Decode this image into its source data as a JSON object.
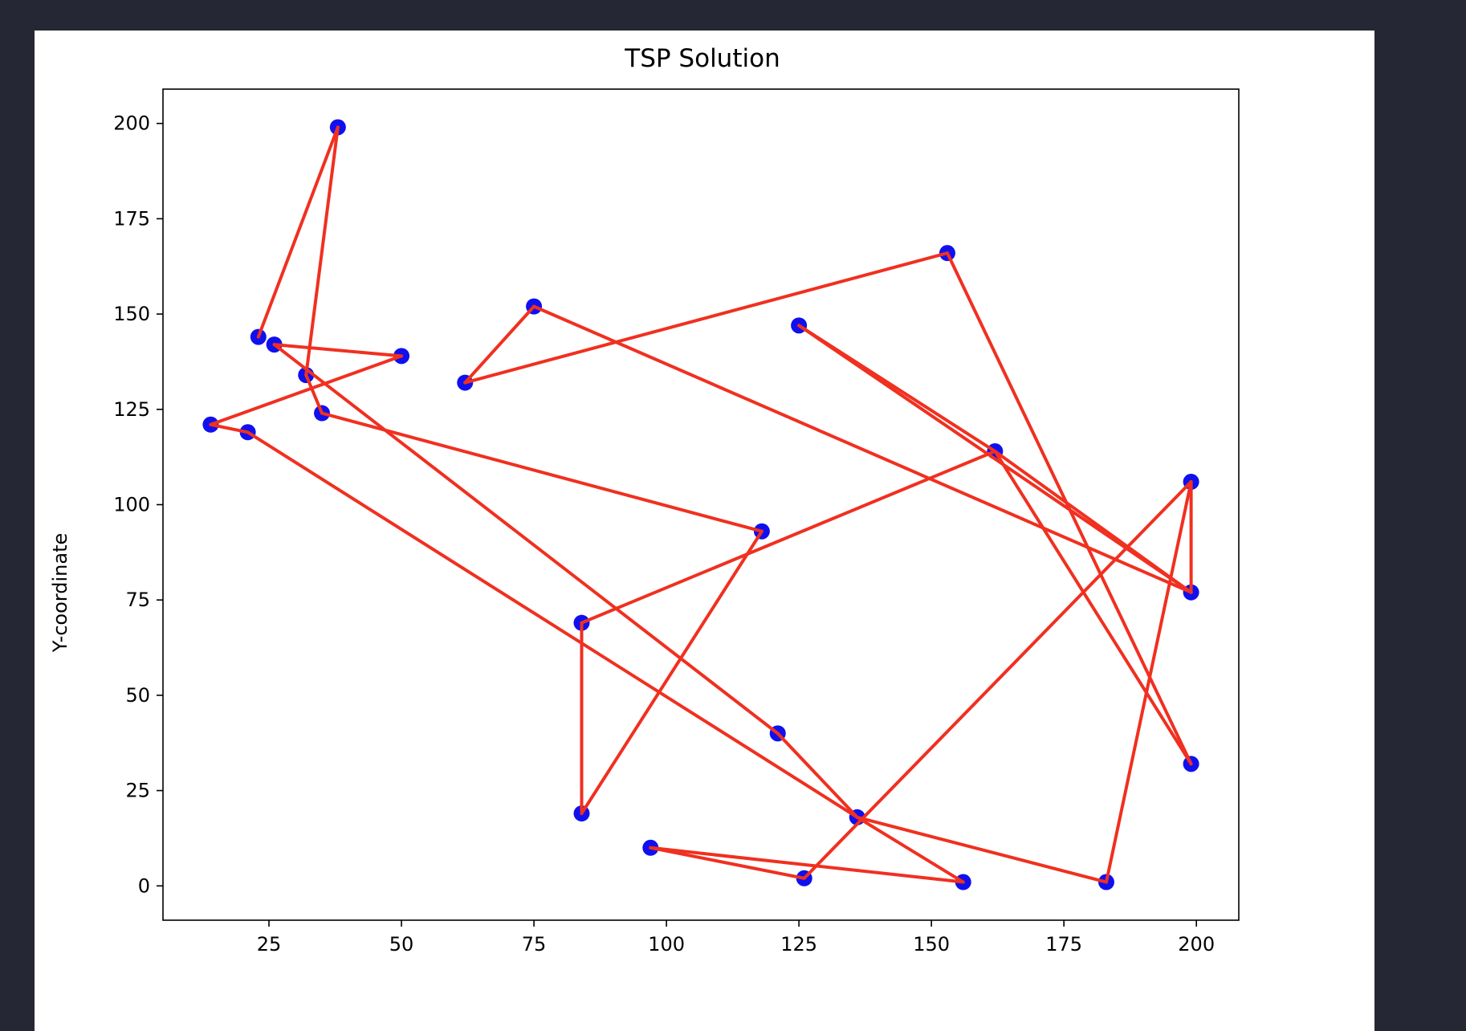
{
  "chart_data": {
    "type": "line",
    "title": "TSP Solution",
    "xlabel": "",
    "ylabel": "Y-coordinate",
    "xlim": [
      5,
      208
    ],
    "ylim": [
      -9,
      209
    ],
    "xticks": [
      25,
      50,
      75,
      100,
      125,
      150,
      175,
      200
    ],
    "yticks": [
      0,
      25,
      50,
      75,
      100,
      125,
      150,
      175,
      200
    ],
    "grid": false,
    "legend": "none",
    "colors": {
      "route": "#f03020",
      "city": "#1010ee",
      "frame": "#000000"
    },
    "series": [
      {
        "points": [
          [
            23,
            144
          ],
          [
            38,
            199
          ],
          [
            32,
            134
          ],
          [
            35,
            124
          ],
          [
            118,
            93
          ],
          [
            84,
            19
          ],
          [
            84,
            69
          ],
          [
            162,
            114
          ],
          [
            125,
            147
          ],
          [
            199,
            77
          ],
          [
            75,
            152
          ],
          [
            62,
            132
          ],
          [
            153,
            166
          ],
          [
            199,
            32
          ],
          [
            162,
            114
          ],
          [
            199,
            77
          ],
          [
            199,
            106
          ],
          [
            183,
            1
          ],
          [
            136,
            18
          ],
          [
            121,
            40
          ],
          [
            26,
            142
          ],
          [
            50,
            139
          ],
          [
            14,
            121
          ],
          [
            21,
            119
          ],
          [
            136,
            18
          ],
          [
            156,
            1
          ],
          [
            97,
            10
          ],
          [
            126,
            2
          ],
          [
            199,
            106
          ]
        ]
      }
    ],
    "cities": [
      [
        38,
        199
      ],
      [
        23,
        144
      ],
      [
        26,
        142
      ],
      [
        32,
        134
      ],
      [
        50,
        139
      ],
      [
        14,
        121
      ],
      [
        21,
        119
      ],
      [
        35,
        124
      ],
      [
        75,
        152
      ],
      [
        62,
        132
      ],
      [
        125,
        147
      ],
      [
        153,
        166
      ],
      [
        162,
        114
      ],
      [
        118,
        93
      ],
      [
        84,
        69
      ],
      [
        84,
        19
      ],
      [
        121,
        40
      ],
      [
        136,
        18
      ],
      [
        97,
        10
      ],
      [
        126,
        2
      ],
      [
        156,
        1
      ],
      [
        183,
        1
      ],
      [
        199,
        106
      ],
      [
        199,
        77
      ],
      [
        199,
        32
      ]
    ]
  }
}
